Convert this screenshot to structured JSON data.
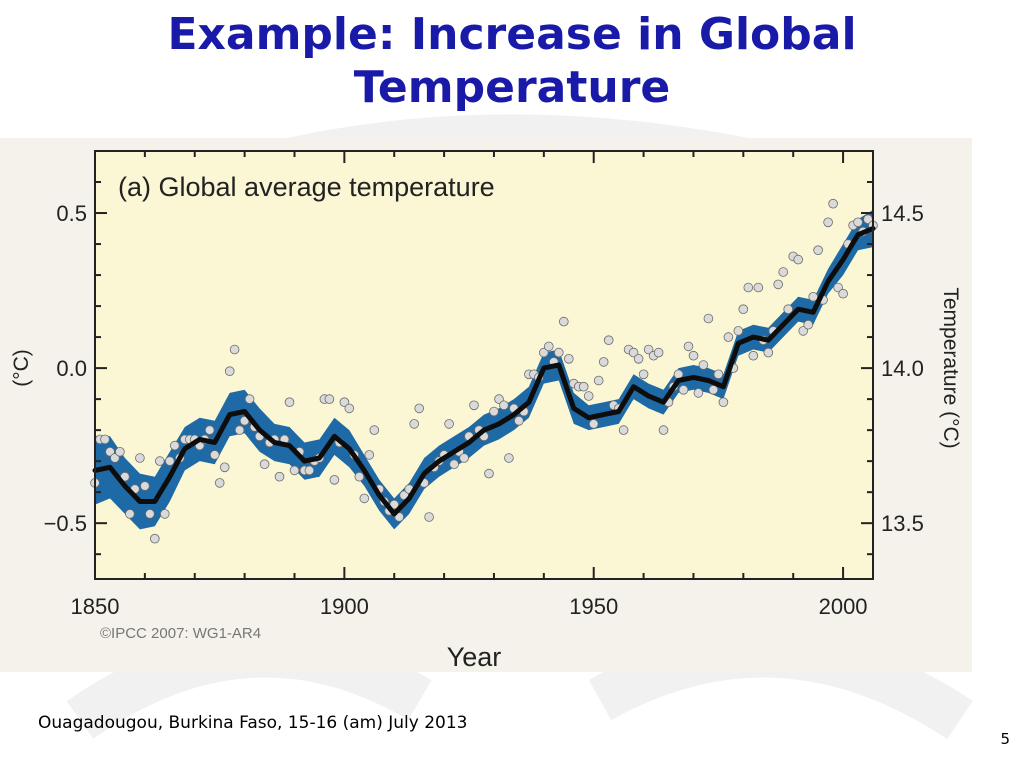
{
  "slide": {
    "title_line1": "Example: Increase in Global",
    "title_line2": "Temperature",
    "footer": "Ouagadougou, Burkina Faso, 15-16 (am) July 2013",
    "page_number": "5"
  },
  "colors": {
    "title": "#1a1aa8",
    "plot_background": "#fbf6d3",
    "band": "#1e6aa6",
    "line": "#0d0d0d",
    "point_fill": "#dadada"
  },
  "chart_data": {
    "type": "line",
    "title": "(a) Global average temperature",
    "xlabel": "Year",
    "ylabel_left": "(°C)",
    "ylabel_right": "Temperature (°C)",
    "copyright": "©IPCC  2007: WG1-AR4",
    "xlim": [
      1850,
      2006
    ],
    "ylim": [
      -0.68,
      0.7
    ],
    "x_ticks": [
      1850,
      1900,
      1950,
      2000
    ],
    "y_ticks_left": [
      {
        "value": 0.5,
        "label": "0.5"
      },
      {
        "value": 0.0,
        "label": "0.0"
      },
      {
        "value": -0.5,
        "label": "−0.5"
      }
    ],
    "y_ticks_right": [
      {
        "value": 0.5,
        "label": "14.5"
      },
      {
        "value": 0.0,
        "label": "14.0"
      },
      {
        "value": -0.5,
        "label": "13.5"
      }
    ],
    "smoothed": {
      "x": [
        1850,
        1853,
        1856,
        1859,
        1862,
        1865,
        1868,
        1871,
        1874,
        1877,
        1880,
        1883,
        1886,
        1889,
        1892,
        1895,
        1898,
        1901,
        1904,
        1907,
        1910,
        1913,
        1916,
        1919,
        1922,
        1925,
        1928,
        1931,
        1934,
        1937,
        1940,
        1943,
        1946,
        1949,
        1952,
        1955,
        1958,
        1961,
        1964,
        1967,
        1970,
        1973,
        1976,
        1979,
        1982,
        1985,
        1988,
        1991,
        1994,
        1997,
        2000,
        2003,
        2006
      ],
      "y": [
        -0.33,
        -0.32,
        -0.38,
        -0.43,
        -0.43,
        -0.35,
        -0.26,
        -0.23,
        -0.24,
        -0.15,
        -0.14,
        -0.2,
        -0.24,
        -0.25,
        -0.3,
        -0.29,
        -0.22,
        -0.26,
        -0.33,
        -0.41,
        -0.47,
        -0.42,
        -0.34,
        -0.3,
        -0.27,
        -0.24,
        -0.2,
        -0.18,
        -0.15,
        -0.11,
        0.0,
        0.01,
        -0.13,
        -0.16,
        -0.15,
        -0.14,
        -0.06,
        -0.09,
        -0.11,
        -0.04,
        -0.03,
        -0.04,
        -0.06,
        0.08,
        0.1,
        0.09,
        0.14,
        0.19,
        0.18,
        0.28,
        0.35,
        0.43,
        0.45
      ],
      "half_width": [
        0.11,
        0.1,
        0.09,
        0.09,
        0.08,
        0.08,
        0.07,
        0.07,
        0.07,
        0.07,
        0.07,
        0.07,
        0.06,
        0.06,
        0.06,
        0.06,
        0.06,
        0.06,
        0.05,
        0.05,
        0.05,
        0.05,
        0.05,
        0.05,
        0.05,
        0.05,
        0.05,
        0.05,
        0.05,
        0.05,
        0.05,
        0.05,
        0.05,
        0.04,
        0.04,
        0.04,
        0.04,
        0.04,
        0.04,
        0.04,
        0.04,
        0.04,
        0.04,
        0.04,
        0.04,
        0.04,
        0.04,
        0.04,
        0.04,
        0.04,
        0.05,
        0.05,
        0.06
      ]
    },
    "annual": {
      "x": [
        1850,
        1851,
        1852,
        1853,
        1854,
        1855,
        1856,
        1857,
        1858,
        1859,
        1860,
        1861,
        1862,
        1863,
        1864,
        1865,
        1866,
        1867,
        1868,
        1869,
        1870,
        1871,
        1872,
        1873,
        1874,
        1875,
        1876,
        1877,
        1878,
        1879,
        1880,
        1881,
        1882,
        1883,
        1884,
        1885,
        1886,
        1887,
        1888,
        1889,
        1890,
        1891,
        1892,
        1893,
        1894,
        1895,
        1896,
        1897,
        1898,
        1899,
        1900,
        1901,
        1902,
        1903,
        1904,
        1905,
        1906,
        1907,
        1908,
        1909,
        1910,
        1911,
        1912,
        1913,
        1914,
        1915,
        1916,
        1917,
        1918,
        1919,
        1920,
        1921,
        1922,
        1923,
        1924,
        1925,
        1926,
        1927,
        1928,
        1929,
        1930,
        1931,
        1932,
        1933,
        1934,
        1935,
        1936,
        1937,
        1938,
        1939,
        1940,
        1941,
        1942,
        1943,
        1944,
        1945,
        1946,
        1947,
        1948,
        1949,
        1950,
        1951,
        1952,
        1953,
        1954,
        1955,
        1956,
        1957,
        1958,
        1959,
        1960,
        1961,
        1962,
        1963,
        1964,
        1965,
        1966,
        1967,
        1968,
        1969,
        1970,
        1971,
        1972,
        1973,
        1974,
        1975,
        1976,
        1977,
        1978,
        1979,
        1980,
        1981,
        1982,
        1983,
        1984,
        1985,
        1986,
        1987,
        1988,
        1989,
        1990,
        1991,
        1992,
        1993,
        1994,
        1995,
        1996,
        1997,
        1998,
        1999,
        2000,
        2001,
        2002,
        2003,
        2004,
        2005,
        2006
      ],
      "y": [
        -0.37,
        -0.23,
        -0.23,
        -0.27,
        -0.29,
        -0.27,
        -0.35,
        -0.47,
        -0.39,
        -0.29,
        -0.38,
        -0.47,
        -0.55,
        -0.3,
        -0.47,
        -0.3,
        -0.25,
        -0.29,
        -0.23,
        -0.23,
        -0.23,
        -0.25,
        -0.23,
        -0.2,
        -0.28,
        -0.37,
        -0.32,
        -0.01,
        0.06,
        -0.2,
        -0.17,
        -0.1,
        -0.19,
        -0.22,
        -0.31,
        -0.24,
        -0.23,
        -0.35,
        -0.23,
        -0.11,
        -0.33,
        -0.27,
        -0.33,
        -0.33,
        -0.3,
        -0.29,
        -0.1,
        -0.1,
        -0.36,
        -0.24,
        -0.11,
        -0.13,
        -0.28,
        -0.35,
        -0.42,
        -0.28,
        -0.2,
        -0.39,
        -0.43,
        -0.46,
        -0.44,
        -0.48,
        -0.41,
        -0.39,
        -0.18,
        -0.13,
        -0.37,
        -0.48,
        -0.32,
        -0.3,
        -0.28,
        -0.18,
        -0.31,
        -0.27,
        -0.29,
        -0.22,
        -0.12,
        -0.2,
        -0.22,
        -0.34,
        -0.14,
        -0.1,
        -0.12,
        -0.29,
        -0.13,
        -0.17,
        -0.14,
        -0.02,
        -0.02,
        -0.03,
        0.05,
        0.07,
        0.02,
        0.05,
        0.15,
        0.03,
        -0.05,
        -0.06,
        -0.06,
        -0.09,
        -0.18,
        -0.04,
        0.02,
        0.09,
        -0.12,
        -0.13,
        -0.2,
        0.06,
        0.05,
        0.03,
        -0.02,
        0.06,
        0.04,
        0.05,
        -0.2,
        -0.11,
        -0.06,
        -0.02,
        -0.07,
        0.07,
        0.04,
        -0.08,
        0.01,
        0.16,
        -0.07,
        -0.02,
        -0.11,
        0.1,
        0.0,
        0.12,
        0.19,
        0.26,
        0.04,
        0.26,
        0.09,
        0.05,
        0.12,
        0.27,
        0.31,
        0.19,
        0.36,
        0.35,
        0.12,
        0.14,
        0.23,
        0.38,
        0.22,
        0.47,
        0.53,
        0.26,
        0.24,
        0.4,
        0.46,
        0.47,
        0.44,
        0.48,
        0.46
      ]
    }
  }
}
